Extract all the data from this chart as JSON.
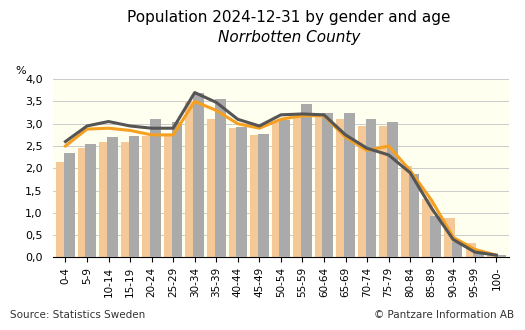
{
  "title_line1": "Population 2024-12-31 by gender and age",
  "title_line2": "Norrbotten County",
  "xlabel": "%",
  "source_left": "Source: Statistics Sweden",
  "source_right": "© Pantzare Information AB",
  "age_groups": [
    "0-4",
    "5-9",
    "10-14",
    "15-19",
    "20-24",
    "25-29",
    "30-34",
    "35-39",
    "40-44",
    "45-49",
    "50-54",
    "55-59",
    "60-64",
    "65-69",
    "70-74",
    "75-79",
    "80-84",
    "85-89",
    "90-94",
    "95-99",
    "100-"
  ],
  "women_county": [
    2.15,
    2.45,
    2.6,
    2.6,
    2.72,
    2.72,
    3.5,
    3.1,
    2.9,
    2.75,
    3.05,
    3.15,
    3.2,
    3.1,
    2.95,
    2.95,
    2.05,
    1.3,
    0.88,
    0.32,
    0.07
  ],
  "men_county": [
    2.35,
    2.55,
    2.7,
    2.73,
    3.1,
    3.05,
    3.68,
    3.55,
    2.92,
    2.78,
    3.08,
    3.45,
    3.25,
    3.25,
    3.1,
    3.05,
    1.87,
    0.92,
    0.34,
    0.11,
    0.05
  ],
  "women_sweden": [
    2.5,
    2.88,
    2.9,
    2.85,
    2.75,
    2.75,
    3.5,
    3.3,
    3.0,
    2.9,
    3.1,
    3.18,
    3.18,
    2.7,
    2.4,
    2.5,
    1.95,
    1.28,
    0.45,
    0.18,
    0.05
  ],
  "women_county_bar_color": "#f5c897",
  "men_county_bar_color": "#aaaaaa",
  "women_sweden_line_color": "#f5a020",
  "men_sweden_line_color": "#555555",
  "men_sweden": [
    2.6,
    2.95,
    3.05,
    2.95,
    2.9,
    2.9,
    3.7,
    3.48,
    3.1,
    2.95,
    3.2,
    3.22,
    3.2,
    2.75,
    2.45,
    2.3,
    1.9,
    1.1,
    0.4,
    0.12,
    0.05
  ],
  "ylim": [
    0.0,
    4.0
  ],
  "yticks": [
    0.0,
    0.5,
    1.0,
    1.5,
    2.0,
    2.5,
    3.0,
    3.5,
    4.0
  ],
  "ytick_labels": [
    "0,0",
    "0,5",
    "1,0",
    "1,5",
    "2,0",
    "2,5",
    "3,0",
    "3,5",
    "4,0"
  ],
  "background_color": "#fffff0",
  "plot_bg_color": "#fffff0",
  "outer_bg_color": "#ffffff",
  "bar_width": 0.4
}
